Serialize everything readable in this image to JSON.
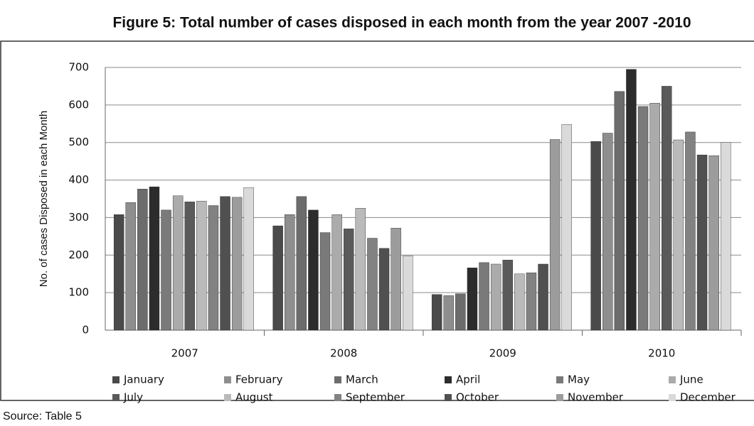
{
  "chart_data": {
    "type": "bar",
    "title": "Figure 5: Total number of cases disposed in each month from the year 2007 -2010",
    "ylabel": "No. of cases Disposed in each Month",
    "source": "Source: Table 5",
    "categories": [
      "2007",
      "2008",
      "2009",
      "2010"
    ],
    "series": [
      {
        "name": "January",
        "color": "#4a4a4a",
        "values": [
          308,
          278,
          95,
          503
        ]
      },
      {
        "name": "February",
        "color": "#8e8e8e",
        "values": [
          340,
          308,
          92,
          525
        ]
      },
      {
        "name": "March",
        "color": "#6c6c6c",
        "values": [
          376,
          356,
          97,
          636
        ]
      },
      {
        "name": "April",
        "color": "#2c2c2c",
        "values": [
          382,
          320,
          166,
          695
        ]
      },
      {
        "name": "May",
        "color": "#7a7a7a",
        "values": [
          320,
          260,
          180,
          596
        ]
      },
      {
        "name": "June",
        "color": "#ababab",
        "values": [
          358,
          308,
          176,
          605
        ]
      },
      {
        "name": "July",
        "color": "#5a5a5a",
        "values": [
          342,
          270,
          187,
          650
        ]
      },
      {
        "name": "August",
        "color": "#bababa",
        "values": [
          344,
          325,
          150,
          507
        ]
      },
      {
        "name": "September",
        "color": "#828282",
        "values": [
          332,
          245,
          153,
          528
        ]
      },
      {
        "name": "October",
        "color": "#505050",
        "values": [
          356,
          218,
          176,
          467
        ]
      },
      {
        "name": "November",
        "color": "#9c9c9c",
        "values": [
          354,
          272,
          508,
          465
        ]
      },
      {
        "name": "December",
        "color": "#dadada",
        "values": [
          380,
          198,
          548,
          500
        ]
      }
    ],
    "ylim": [
      0,
      700
    ],
    "yticks": [
      0,
      100,
      200,
      300,
      400,
      500,
      600,
      700
    ],
    "grid": true
  }
}
